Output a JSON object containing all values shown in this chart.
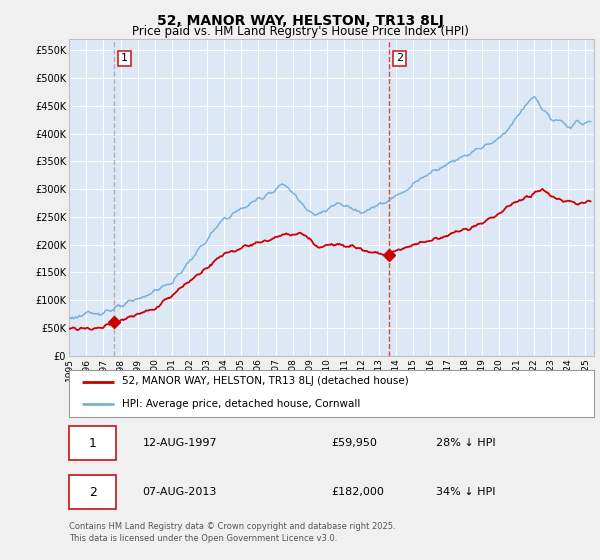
{
  "title": "52, MANOR WAY, HELSTON, TR13 8LJ",
  "subtitle": "Price paid vs. HM Land Registry's House Price Index (HPI)",
  "yticks": [
    0,
    50000,
    100000,
    150000,
    200000,
    250000,
    300000,
    350000,
    400000,
    450000,
    500000,
    550000
  ],
  "ytick_labels": [
    "£0",
    "£50K",
    "£100K",
    "£150K",
    "£200K",
    "£250K",
    "£300K",
    "£350K",
    "£400K",
    "£450K",
    "£500K",
    "£550K"
  ],
  "xmin": 1995,
  "xmax": 2025.5,
  "ymin": 0,
  "ymax": 570000,
  "bg_color": "#dce8f5",
  "fig_color": "#f0f0f0",
  "grid_color": "#ffffff",
  "red_line_color": "#cc0000",
  "blue_line_color": "#7ab0d8",
  "vline1_color": "#aaaaaa",
  "vline2_color": "#dd3333",
  "vline1_x": 1997.62,
  "vline2_x": 2013.6,
  "marker1_x": 1997.62,
  "marker1_y": 59950,
  "marker2_x": 2013.6,
  "marker2_y": 182000,
  "legend_red": "52, MANOR WAY, HELSTON, TR13 8LJ (detached house)",
  "legend_blue": "HPI: Average price, detached house, Cornwall",
  "table_row1": [
    "1",
    "12-AUG-1997",
    "£59,950",
    "28% ↓ HPI"
  ],
  "table_row2": [
    "2",
    "07-AUG-2013",
    "£182,000",
    "34% ↓ HPI"
  ],
  "footer": "Contains HM Land Registry data © Crown copyright and database right 2025.\nThis data is licensed under the Open Government Licence v3.0."
}
